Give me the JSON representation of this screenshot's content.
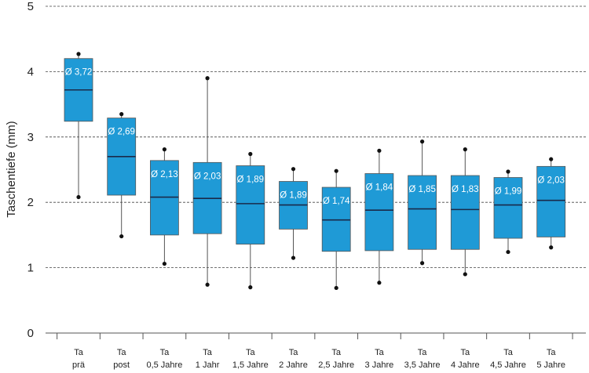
{
  "chart_data": {
    "type": "box",
    "ylabel": "Taschentiefe (mm)",
    "ylim": [
      0,
      5
    ],
    "yticks": [
      "0",
      "1",
      "2",
      "3",
      "4",
      "5"
    ],
    "grid": "horizontal dashed",
    "box_color": "#1f9ad6",
    "categories": [
      {
        "line1": "Ta",
        "line2": "prä"
      },
      {
        "line1": "Ta",
        "line2": "post"
      },
      {
        "line1": "Ta",
        "line2": "0,5 Jahre"
      },
      {
        "line1": "Ta",
        "line2": "1 Jahr"
      },
      {
        "line1": "Ta",
        "line2": "1,5 Jahre"
      },
      {
        "line1": "Ta",
        "line2": "2 Jahre"
      },
      {
        "line1": "Ta",
        "line2": "2,5 Jahre"
      },
      {
        "line1": "Ta",
        "line2": "3 Jahre"
      },
      {
        "line1": "Ta",
        "line2": "3,5 Jahre"
      },
      {
        "line1": "Ta",
        "line2": "4 Jahre"
      },
      {
        "line1": "Ta",
        "line2": "4,5 Jahre"
      },
      {
        "line1": "Ta",
        "line2": "5 Jahre"
      }
    ],
    "boxes": [
      {
        "min": 2.08,
        "q1": 3.24,
        "median": 3.72,
        "q3": 4.2,
        "max": 4.27,
        "mean_label": "Ø 3,72"
      },
      {
        "min": 1.48,
        "q1": 2.11,
        "median": 2.7,
        "q3": 3.29,
        "max": 3.35,
        "mean_label": "Ø 2,69"
      },
      {
        "min": 1.06,
        "q1": 1.5,
        "median": 2.08,
        "q3": 2.64,
        "max": 2.81,
        "mean_label": "Ø 2,13"
      },
      {
        "min": 0.74,
        "q1": 1.52,
        "median": 2.06,
        "q3": 2.61,
        "max": 3.9,
        "mean_label": "Ø 2,03"
      },
      {
        "min": 0.7,
        "q1": 1.36,
        "median": 1.98,
        "q3": 2.56,
        "max": 2.74,
        "mean_label": "Ø 1,89"
      },
      {
        "min": 1.15,
        "q1": 1.59,
        "median": 1.96,
        "q3": 2.32,
        "max": 2.51,
        "mean_label": "Ø 1,89"
      },
      {
        "min": 0.69,
        "q1": 1.25,
        "median": 1.73,
        "q3": 2.23,
        "max": 2.48,
        "mean_label": "Ø 1,74"
      },
      {
        "min": 0.77,
        "q1": 1.26,
        "median": 1.88,
        "q3": 2.44,
        "max": 2.79,
        "mean_label": "Ø 1,84"
      },
      {
        "min": 1.07,
        "q1": 1.28,
        "median": 1.9,
        "q3": 2.41,
        "max": 2.93,
        "mean_label": "Ø 1,85"
      },
      {
        "min": 0.9,
        "q1": 1.28,
        "median": 1.89,
        "q3": 2.41,
        "max": 2.81,
        "mean_label": "Ø 1,83"
      },
      {
        "min": 1.24,
        "q1": 1.45,
        "median": 1.96,
        "q3": 2.38,
        "max": 2.47,
        "mean_label": "Ø 1,99"
      },
      {
        "min": 1.31,
        "q1": 1.47,
        "median": 2.03,
        "q3": 2.55,
        "max": 2.66,
        "mean_label": "Ø 2,03"
      }
    ]
  }
}
